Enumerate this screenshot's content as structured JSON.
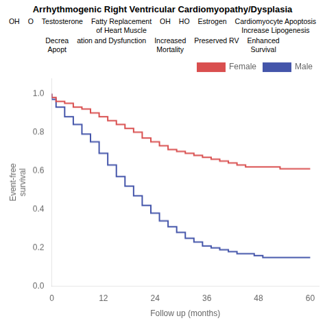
{
  "chart_data": {
    "type": "step",
    "title": "Arrhythmogenic Right Ventricular Cardiomyopathy/Dysplasia",
    "annotations": [
      "OH",
      "O",
      "Testosterone",
      "Fatty Replacement\nof Heart Muscle",
      "OH",
      "HO",
      "Estrogen",
      "Cardiomyocyte Apoptosis\nIncrease Lipogenesis",
      "Decrea\nApopt",
      "ation and Dysfunction",
      "Increased\nMortality",
      "Preserved RV",
      "Enhanced\nSurvival"
    ],
    "x": [
      0,
      1,
      3,
      5,
      7,
      9,
      11,
      13,
      15,
      17,
      19,
      21,
      23,
      25,
      27,
      29,
      31,
      33,
      35,
      37,
      39,
      41,
      43,
      45,
      47,
      49,
      51,
      53,
      55,
      57,
      59,
      60
    ],
    "series": [
      {
        "name": "Female",
        "color": "#d94f4f",
        "values": [
          1.0,
          0.98,
          0.96,
          0.95,
          0.93,
          0.92,
          0.9,
          0.88,
          0.86,
          0.84,
          0.82,
          0.8,
          0.77,
          0.75,
          0.73,
          0.71,
          0.7,
          0.69,
          0.68,
          0.67,
          0.66,
          0.65,
          0.64,
          0.63,
          0.62,
          0.62,
          0.62,
          0.62,
          0.61,
          0.61,
          0.61,
          0.61
        ]
      },
      {
        "name": "Male",
        "color": "#4455aa",
        "values": [
          1.0,
          0.97,
          0.93,
          0.88,
          0.84,
          0.79,
          0.75,
          0.69,
          0.63,
          0.57,
          0.52,
          0.47,
          0.42,
          0.38,
          0.34,
          0.31,
          0.28,
          0.25,
          0.23,
          0.21,
          0.2,
          0.19,
          0.18,
          0.17,
          0.17,
          0.16,
          0.15,
          0.15,
          0.15,
          0.15,
          0.15,
          0.15
        ]
      }
    ],
    "xlabel": "Follow up (months)",
    "ylabel": "Event-free\nsurvival",
    "xlim": [
      0,
      62
    ],
    "ylim": [
      0.0,
      1.08
    ],
    "xticks": [
      0,
      12,
      24,
      36,
      48,
      60
    ],
    "yticks": [
      {
        "value": 0.0,
        "label": "0.0"
      },
      0.2,
      0.4,
      0.6,
      0.8,
      {
        "value": 1.0,
        "label": "1.0"
      }
    ],
    "grid": false,
    "legend": "top-right"
  }
}
